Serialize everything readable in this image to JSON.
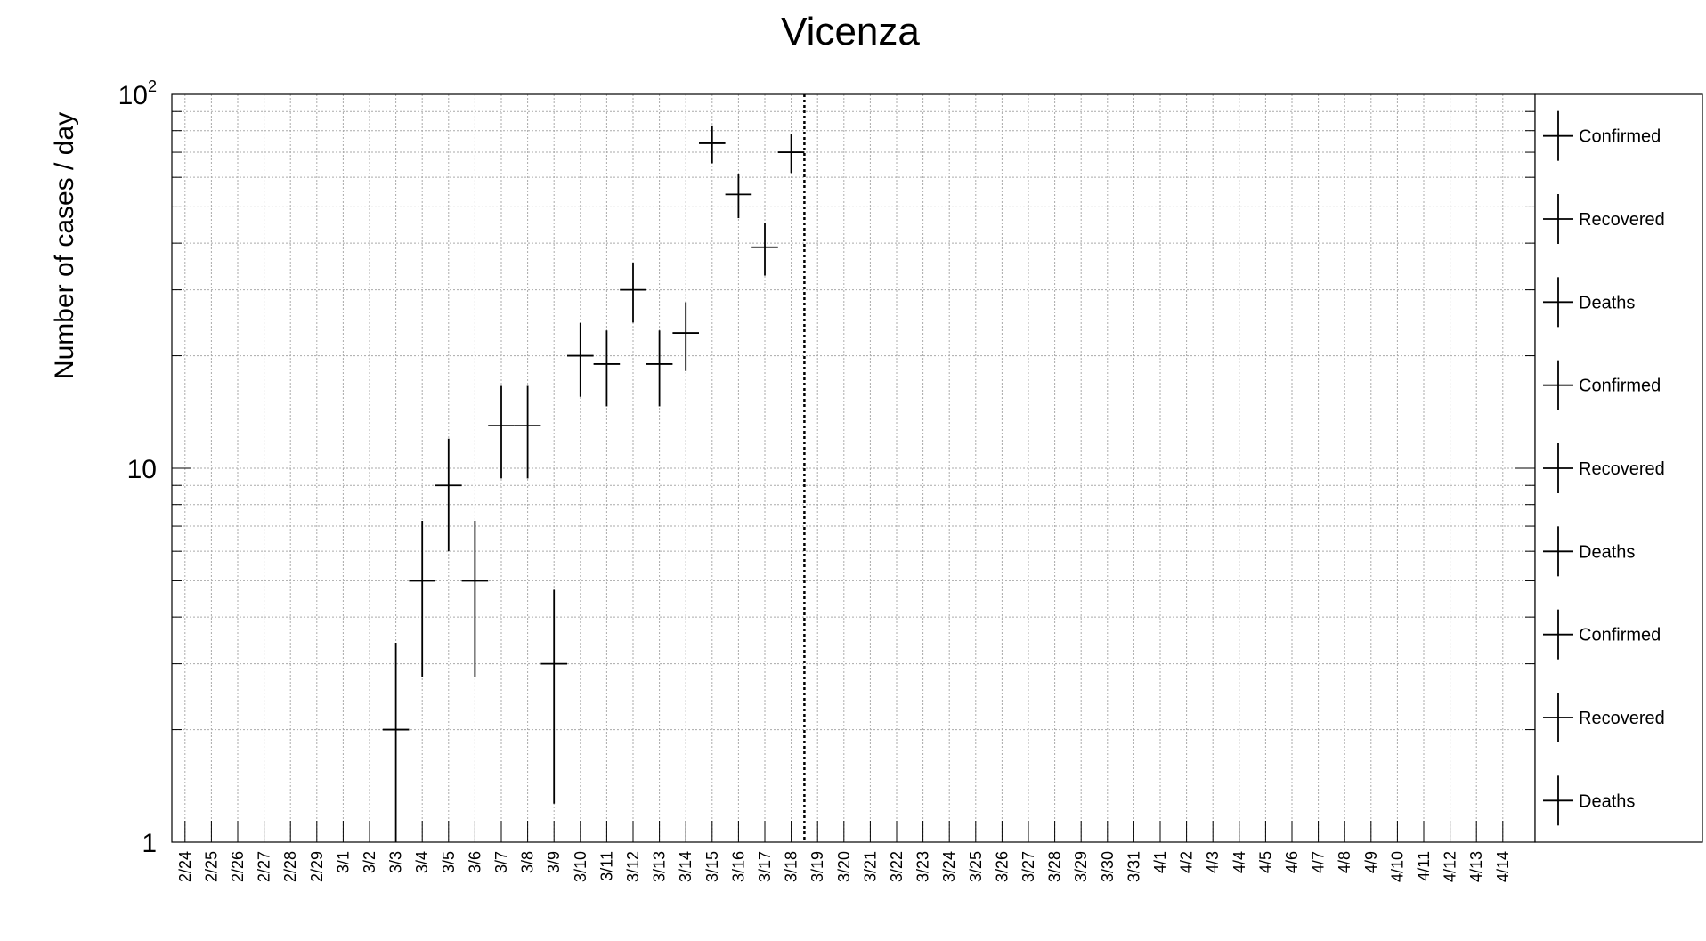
{
  "chart_data": {
    "type": "scatter",
    "title": "Vicenza",
    "xlabel": "",
    "ylabel": "Number of cases / day",
    "y_scale": "log",
    "ylim": [
      1,
      100
    ],
    "y_ticks": [
      {
        "value": 1,
        "base": "1",
        "exp": ""
      },
      {
        "value": 10,
        "base": "10",
        "exp": ""
      },
      {
        "value": 100,
        "base": "10",
        "exp": "2"
      }
    ],
    "grid": true,
    "legend_position": "right",
    "categories": [
      "2/24",
      "2/25",
      "2/26",
      "2/27",
      "2/28",
      "2/29",
      "3/1",
      "3/2",
      "3/3",
      "3/4",
      "3/5",
      "3/6",
      "3/7",
      "3/8",
      "3/9",
      "3/10",
      "3/11",
      "3/12",
      "3/13",
      "3/14",
      "3/15",
      "3/16",
      "3/17",
      "3/18",
      "3/19",
      "3/20",
      "3/21",
      "3/22",
      "3/23",
      "3/24",
      "3/25",
      "3/26",
      "3/27",
      "3/28",
      "3/29",
      "3/30",
      "3/31",
      "4/1",
      "4/2",
      "4/3",
      "4/4",
      "4/5",
      "4/6",
      "4/7",
      "4/8",
      "4/9",
      "4/10",
      "4/11",
      "4/12",
      "4/13",
      "4/14"
    ],
    "marker_line_after": "3/18",
    "series": [
      {
        "name": "Confirmed",
        "color": "#000000",
        "points": [
          {
            "x": "3/3",
            "y": 2
          },
          {
            "x": "3/4",
            "y": 5
          },
          {
            "x": "3/5",
            "y": 9
          },
          {
            "x": "3/6",
            "y": 5
          },
          {
            "x": "3/7",
            "y": 13
          },
          {
            "x": "3/8",
            "y": 13
          },
          {
            "x": "3/9",
            "y": 3
          },
          {
            "x": "3/10",
            "y": 20
          },
          {
            "x": "3/11",
            "y": 19
          },
          {
            "x": "3/12",
            "y": 30
          },
          {
            "x": "3/13",
            "y": 19
          },
          {
            "x": "3/14",
            "y": 23
          },
          {
            "x": "3/15",
            "y": 74
          },
          {
            "x": "3/16",
            "y": 54
          },
          {
            "x": "3/17",
            "y": 39
          },
          {
            "x": "3/18",
            "y": 70
          }
        ]
      }
    ],
    "legend": [
      "Confirmed",
      "Recovered",
      "Deaths",
      "Confirmed",
      "Recovered",
      "Deaths",
      "Confirmed",
      "Recovered",
      "Deaths"
    ]
  }
}
